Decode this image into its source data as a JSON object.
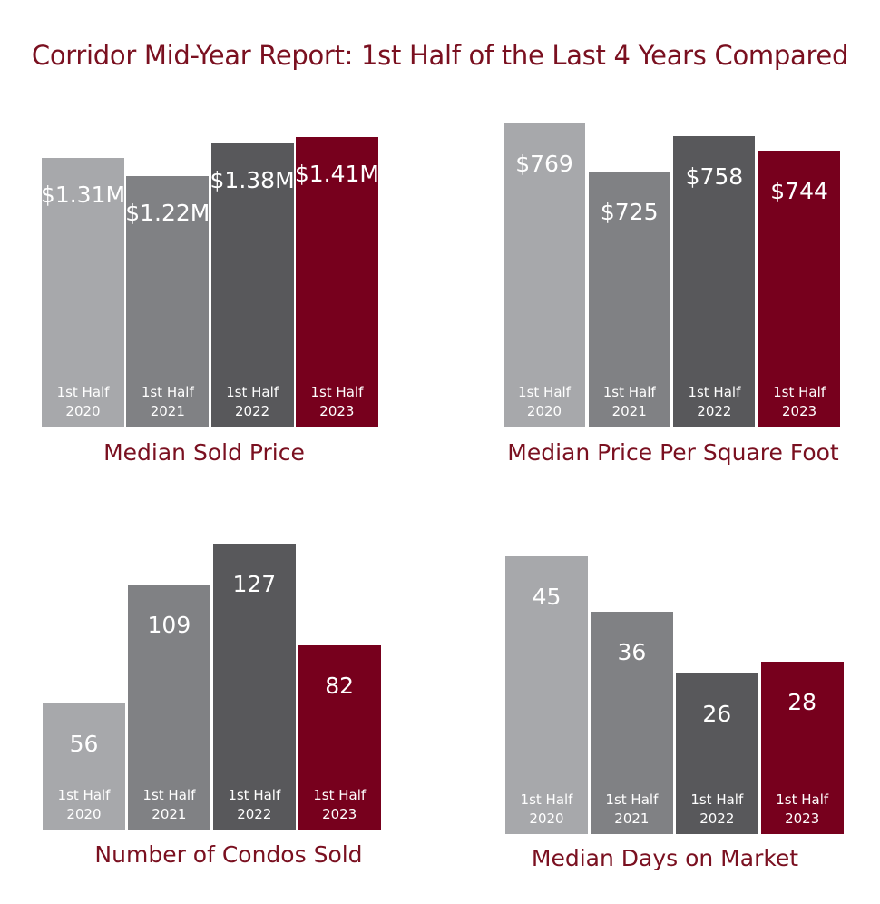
{
  "title": "Corridor Mid-Year Report: 1st Half of the Last 4 Years Compared",
  "colors": [
    "#a7a8ab",
    "#808184",
    "#58585b",
    "#77001d"
  ],
  "chart_data": [
    {
      "type": "bar",
      "title": "Median Sold Price",
      "categories": [
        [
          "1st Half",
          "2020"
        ],
        [
          "1st Half",
          "2021"
        ],
        [
          "1st Half",
          "2022"
        ],
        [
          "1st Half",
          "2023"
        ]
      ],
      "values": [
        1.31,
        1.22,
        1.38,
        1.41
      ],
      "labels": [
        "$1.31M",
        "$1.22M",
        "$1.38M",
        "$1.41M"
      ],
      "ylim": [
        0,
        1.45
      ],
      "unit": "$M"
    },
    {
      "type": "bar",
      "title": "Median Price Per Square Foot",
      "categories": [
        [
          "1st Half",
          "2020"
        ],
        [
          "1st Half",
          "2021"
        ],
        [
          "1st Half",
          "2022"
        ],
        [
          "1st Half",
          "2023"
        ]
      ],
      "values": [
        769,
        725,
        758,
        744
      ],
      "labels": [
        "$769",
        "$725",
        "$758",
        "$744"
      ],
      "ylim": [
        491,
        780
      ],
      "unit": "$"
    },
    {
      "type": "bar",
      "title": "Number of Condos Sold",
      "categories": [
        [
          "1st Half",
          "2020"
        ],
        [
          "1st Half",
          "2021"
        ],
        [
          "1st Half",
          "2022"
        ],
        [
          "1st Half",
          "2023"
        ]
      ],
      "values": [
        56,
        109,
        127,
        82
      ],
      "labels": [
        "56",
        "109",
        "127",
        "82"
      ],
      "ylim": [
        0,
        130
      ]
    },
    {
      "type": "bar",
      "title": "Median Days on Market",
      "categories": [
        [
          "1st Half",
          "2020"
        ],
        [
          "1st Half",
          "2021"
        ],
        [
          "1st Half",
          "2022"
        ],
        [
          "1st Half",
          "2023"
        ]
      ],
      "values": [
        45,
        36,
        26,
        28
      ],
      "labels": [
        "45",
        "36",
        "26",
        "28"
      ],
      "ylim": [
        0,
        46
      ]
    }
  ]
}
